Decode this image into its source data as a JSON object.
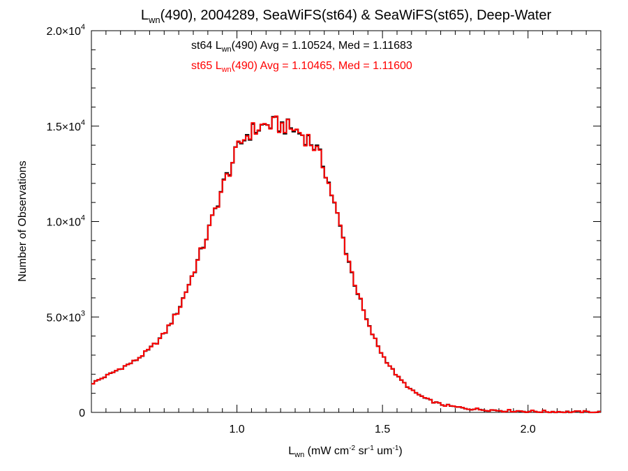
{
  "chart_data": {
    "type": "line",
    "title": {
      "main": "L",
      "main_sub": "wn",
      "rest": "(490), 2004289, SeaWiFS(st64) & SeaWiFS(st65), Deep-Water"
    },
    "xlabel": {
      "main": "L",
      "sub": "wn",
      "units": [
        {
          "t": " (mW cm",
          "sup": "-2"
        },
        {
          "t": " sr",
          "sup": "-1"
        },
        {
          "t": " um",
          "sup": "-1"
        },
        {
          "t": ")",
          "sup": ""
        }
      ]
    },
    "ylabel": "Number of Observations",
    "xlim": [
      0.5,
      2.25
    ],
    "ylim": [
      0,
      20000
    ],
    "x_ticks": [
      {
        "value": 1.0,
        "label": "1.0"
      },
      {
        "value": 1.5,
        "label": "1.5"
      },
      {
        "value": 2.0,
        "label": "2.0"
      }
    ],
    "y_ticks": [
      {
        "value": 0,
        "mant": "0",
        "exp": ""
      },
      {
        "value": 5000,
        "mant": "5.0×10",
        "exp": "3"
      },
      {
        "value": 10000,
        "mant": "1.0×10",
        "exp": "4"
      },
      {
        "value": 15000,
        "mant": "1.5×10",
        "exp": "4"
      },
      {
        "value": 20000,
        "mant": "2.0×10",
        "exp": "4"
      }
    ],
    "annotations": [
      {
        "prefix": "st64 L",
        "sub": "wn",
        "suffix": "(490) Avg = 1.10524, Med = 1.11683",
        "color": "#000000"
      },
      {
        "prefix": "st65 L",
        "sub": "wn",
        "suffix": "(490) Avg = 1.10465, Med = 1.11600",
        "color": "#ff0000"
      }
    ],
    "series": [
      {
        "color": "#000000",
        "style": "step",
        "bin_width": 0.01,
        "x": [
          0.5,
          0.55,
          0.6,
          0.65,
          0.7,
          0.75,
          0.8,
          0.85,
          0.9,
          0.95,
          1.0,
          1.03,
          1.06,
          1.09,
          1.12,
          1.15,
          1.18,
          1.21,
          1.24,
          1.27,
          1.3,
          1.35,
          1.4,
          1.45,
          1.5,
          1.55,
          1.6,
          1.65,
          1.7,
          1.75,
          1.8,
          1.9,
          2.0,
          2.1,
          2.2,
          2.25
        ],
        "values": [
          1500,
          1900,
          2300,
          2700,
          3300,
          4100,
          5400,
          7300,
          9400,
          11800,
          13700,
          14500,
          14800,
          15000,
          15100,
          15050,
          14900,
          14700,
          14400,
          13900,
          12900,
          10000,
          7000,
          4600,
          3000,
          1900,
          1150,
          700,
          420,
          280,
          190,
          100,
          55,
          30,
          15,
          10
        ]
      },
      {
        "color": "#ff0000",
        "style": "step",
        "bin_width": 0.01,
        "x": [
          0.5,
          0.55,
          0.6,
          0.65,
          0.7,
          0.75,
          0.8,
          0.85,
          0.9,
          0.95,
          1.0,
          1.03,
          1.06,
          1.09,
          1.12,
          1.15,
          1.18,
          1.21,
          1.24,
          1.27,
          1.3,
          1.35,
          1.4,
          1.45,
          1.5,
          1.55,
          1.6,
          1.65,
          1.7,
          1.75,
          1.8,
          1.9,
          2.0,
          2.1,
          2.2,
          2.25
        ],
        "values": [
          1500,
          1900,
          2300,
          2700,
          3300,
          4100,
          5400,
          7300,
          9400,
          11800,
          13700,
          14500,
          14800,
          15000,
          15100,
          15050,
          14900,
          14700,
          14400,
          13900,
          12900,
          10000,
          7000,
          4600,
          3000,
          1900,
          1150,
          700,
          420,
          280,
          190,
          100,
          55,
          30,
          15,
          10
        ]
      }
    ]
  }
}
